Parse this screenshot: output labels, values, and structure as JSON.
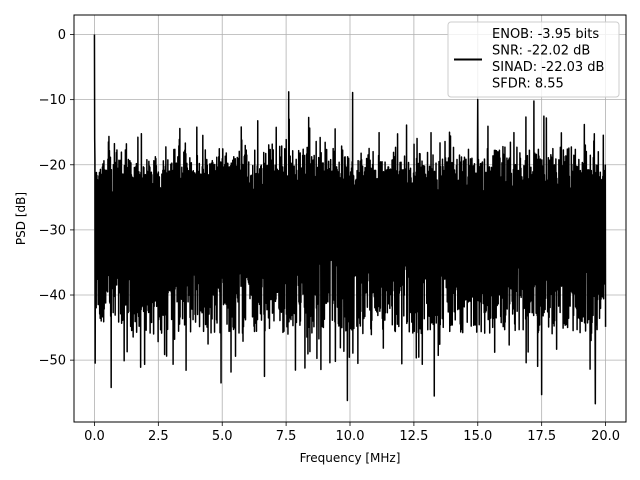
{
  "chart_data": {
    "type": "line",
    "title": "",
    "xlabel": "Frequency [MHz]",
    "ylabel": "PSD [dB]",
    "xlim": [
      -0.8,
      20.8
    ],
    "ylim": [
      -59.5,
      3.0
    ],
    "grid": true,
    "legend_position": "top-right",
    "x_ticks": [
      0.0,
      2.5,
      5.0,
      7.5,
      10.0,
      12.5,
      15.0,
      17.5,
      20.0
    ],
    "x_tick_labels": [
      "0.0",
      "2.5",
      "5.0",
      "7.5",
      "10.0",
      "12.5",
      "15.0",
      "17.5",
      "20.0"
    ],
    "y_ticks": [
      0,
      -10,
      -20,
      -30,
      -40,
      -50
    ],
    "y_tick_labels": [
      "0",
      "−10",
      "−20",
      "−30",
      "−40",
      "−50"
    ],
    "series": [
      {
        "name": "ENOB: -3.95 bits\nSNR: -22.02 dB\nSINAD: -22.03 dB\nSFDR: 8.55",
        "legend_lines": [
          "ENOB: -3.95 bits",
          "SNR: -22.02 dB",
          "SINAD: -22.03 dB",
          "SFDR: 8.55"
        ],
        "color": "#000000",
        "n_points": 2048,
        "x_range": [
          0.0,
          20.0
        ],
        "peak": {
          "x": 0.0,
          "y": 0.0
        },
        "upper_envelope_db": -16.5,
        "typical_floor_db": -30,
        "notable_minima": [
          {
            "x": 0.65,
            "y": -54.2
          },
          {
            "x": 4.95,
            "y": -53.5
          },
          {
            "x": 6.65,
            "y": -52.5
          },
          {
            "x": 9.9,
            "y": -56.2
          },
          {
            "x": 13.3,
            "y": -55.5
          },
          {
            "x": 17.5,
            "y": -55.3
          },
          {
            "x": 19.6,
            "y": -56.7
          }
        ],
        "notable_maxima": [
          {
            "x": 7.6,
            "y": -8.8
          },
          {
            "x": 10.1,
            "y": -8.9
          },
          {
            "x": 15.0,
            "y": -10.0
          },
          {
            "x": 17.2,
            "y": -10.2
          }
        ]
      }
    ]
  }
}
